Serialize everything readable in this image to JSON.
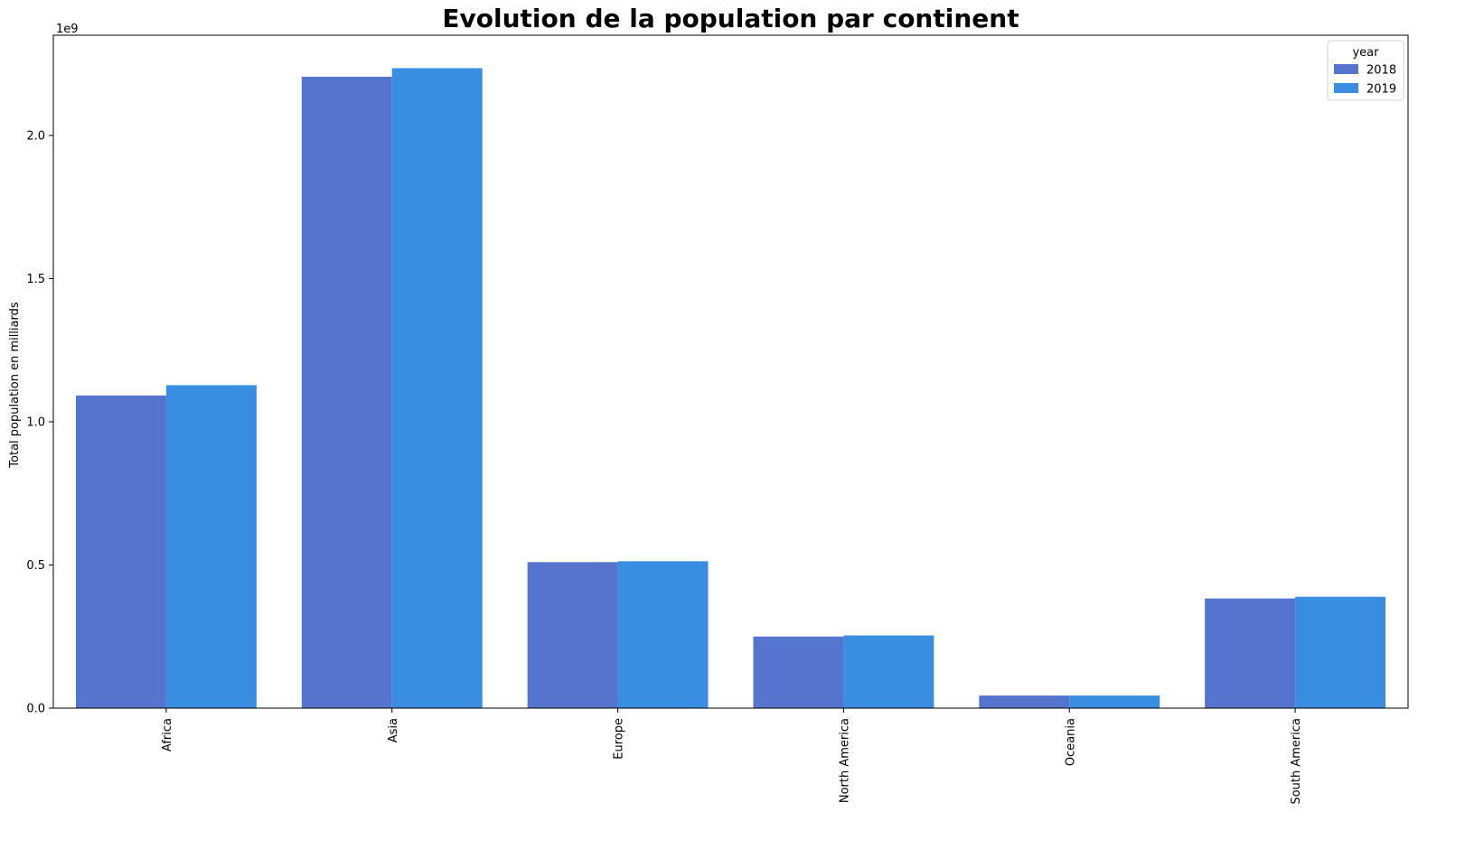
{
  "chart_data": {
    "type": "bar",
    "title": "Evolution de la population par continent",
    "xlabel": "",
    "ylabel": "Total population en milliards",
    "y_offset_label": "1e9",
    "ylim": [
      0,
      2350000000
    ],
    "yticks": [
      0,
      500000000,
      1000000000,
      1500000000,
      2000000000
    ],
    "ytick_labels": [
      "0.0",
      "0.5",
      "1.0",
      "1.5",
      "2.0"
    ],
    "categories": [
      "Africa",
      "Asia",
      "Europe",
      "North America",
      "Oceania",
      "South America"
    ],
    "series": [
      {
        "name": "2018",
        "color": "#5574ce",
        "values": [
          1092000000,
          2205000000,
          510000000,
          250000000,
          44000000,
          383000000
        ]
      },
      {
        "name": "2019",
        "color": "#3a8ee2",
        "values": [
          1128000000,
          2235000000,
          513000000,
          254000000,
          44000000,
          389000000
        ]
      }
    ],
    "legend": {
      "title": "year",
      "position": "top-right"
    },
    "grid": false
  }
}
